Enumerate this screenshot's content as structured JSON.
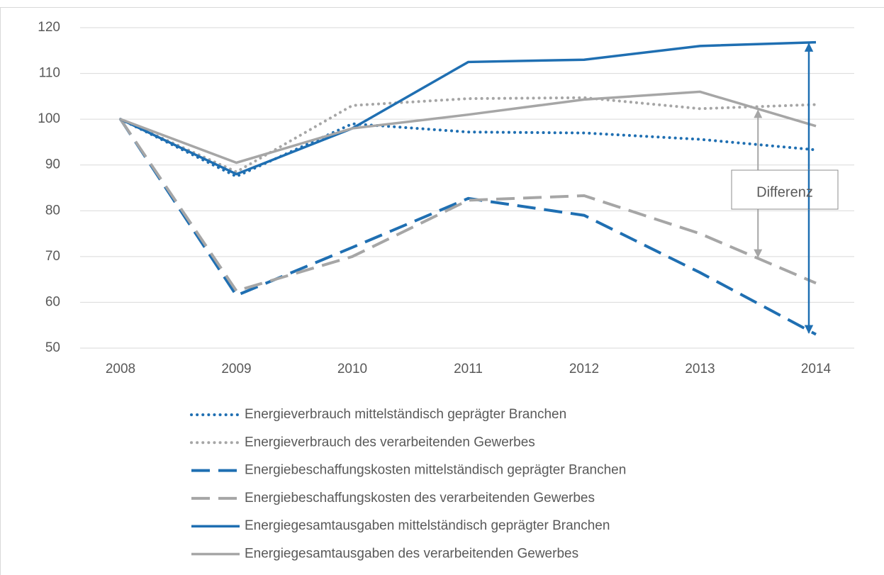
{
  "chart_data": {
    "type": "line",
    "categories": [
      "2008",
      "2009",
      "2010",
      "2011",
      "2012",
      "2013",
      "2014"
    ],
    "ylim": [
      50,
      120
    ],
    "yticks": [
      50,
      60,
      70,
      80,
      90,
      100,
      110,
      120
    ],
    "grid": true,
    "annotation": "Differenz",
    "series": [
      {
        "name": "Energieverbrauch mittelständisch geprägter Branchen",
        "color": "#1f6fb2",
        "style": "dotted",
        "values": [
          100,
          87.5,
          99,
          97.2,
          97,
          95.6,
          93.3
        ]
      },
      {
        "name": "Energieverbrauch des verarbeitenden Gewerbes",
        "color": "#a6a6a6",
        "style": "dotted",
        "values": [
          100,
          88.5,
          103,
          104.5,
          104.7,
          102.3,
          103.2
        ]
      },
      {
        "name": "Energiebeschaffungskosten mittelständisch geprägter Branchen",
        "color": "#1f6fb2",
        "style": "dashed",
        "values": [
          100,
          61.5,
          72,
          82.7,
          79,
          66.5,
          53
        ]
      },
      {
        "name": "Energiebeschaffungskosten des verarbeitenden Gewerbes",
        "color": "#a6a6a6",
        "style": "dashed",
        "values": [
          100,
          62.5,
          70,
          82.3,
          83.3,
          75,
          64.2
        ]
      },
      {
        "name": "Energiegesamtausgaben mittelständisch geprägter Branchen",
        "color": "#1f6fb2",
        "style": "solid",
        "values": [
          100,
          88,
          98,
          112.5,
          113,
          116,
          116.8
        ]
      },
      {
        "name": "Energiegesamtausgaben des verarbeitenden Gewerbes",
        "color": "#a6a6a6",
        "style": "solid",
        "values": [
          100,
          90.5,
          98,
          101,
          104.3,
          106,
          98.5
        ]
      }
    ]
  }
}
